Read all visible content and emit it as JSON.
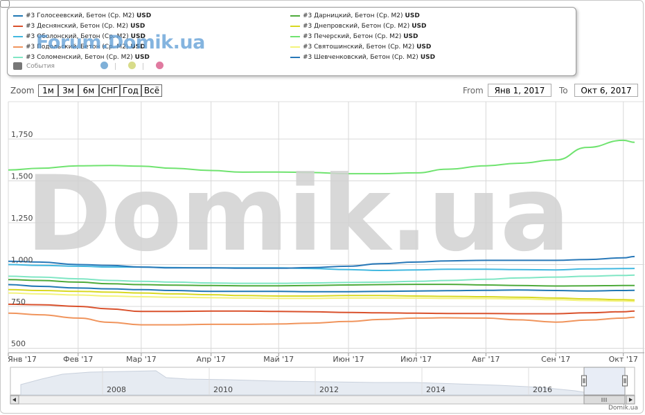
{
  "legend": {
    "items": [
      {
        "label": "#3 Голосеевский, Бетон (Ср. М2)",
        "unit": "USD",
        "color": "#1f77b4"
      },
      {
        "label": "#3 Деснянский, Бетон (Ср. М2)",
        "unit": "USD",
        "color": "#d9502b"
      },
      {
        "label": "#3 Оболонский, Бетон (Ср. М2)",
        "unit": "USD",
        "color": "#41b8e0"
      },
      {
        "label": "#3 Подольский, Бетон (Ср. М2)",
        "unit": "USD",
        "color": "#f0945c"
      },
      {
        "label": "#3 Соломенский, Бетон (Ср. М2)",
        "unit": "USD",
        "color": "#7fe6c4"
      },
      {
        "label": "#3 Дарницкий, Бетон (Ср. М2)",
        "unit": "USD",
        "color": "#4daa3a"
      },
      {
        "label": "#3 Днепровский, Бетон (Ср. М2)",
        "unit": "USD",
        "color": "#d8d820"
      },
      {
        "label": "#3 Печерский, Бетон (Ср. М2)",
        "unit": "USD",
        "color": "#6fe36f"
      },
      {
        "label": "#3 Святошинский, Бетон (Ср. М2)",
        "unit": "USD",
        "color": "#f3f37a"
      },
      {
        "label": "#3 Шевченковский, Бетон (Ср. М2)",
        "unit": "USD",
        "color": "#2878b8"
      }
    ],
    "events_label": "События",
    "event_dot_colors": [
      "#7fb0d8",
      "#d8dc8a",
      "#e07aa0"
    ]
  },
  "watermark_small": "Forum.Domik.ua",
  "watermark_big": "Domik.ua",
  "zoom": {
    "label": "Zoom",
    "buttons": [
      "1м",
      "3м",
      "6м",
      "СНГ",
      "Год",
      "Всё"
    ]
  },
  "range": {
    "from_label": "From",
    "from_value": "Янв 1, 2017",
    "to_label": "To",
    "to_value": "Окт 6, 2017"
  },
  "navigator": {
    "labels": [
      "2008",
      "2010",
      "2012",
      "2014",
      "2016"
    ]
  },
  "credit": "Domik.ua",
  "chart_data": {
    "type": "line",
    "x": [
      "2017-01-01",
      "2017-01-15",
      "2017-02-01",
      "2017-02-15",
      "2017-03-01",
      "2017-03-15",
      "2017-04-01",
      "2017-04-15",
      "2017-05-01",
      "2017-05-15",
      "2017-06-01",
      "2017-06-15",
      "2017-07-01",
      "2017-07-15",
      "2017-08-01",
      "2017-08-15",
      "2017-09-01",
      "2017-09-15",
      "2017-10-01",
      "2017-10-06"
    ],
    "x_tick_labels": [
      "Янв '17",
      "Фев '17",
      "Мар '17",
      "Апр '17",
      "Май '17",
      "Июн '17",
      "Июл '17",
      "Авг '17",
      "Сен '17",
      "Окт '17"
    ],
    "x_tick_dates": [
      "2017-01-01",
      "2017-02-01",
      "2017-03-01",
      "2017-04-01",
      "2017-05-01",
      "2017-06-01",
      "2017-07-01",
      "2017-08-01",
      "2017-09-01",
      "2017-10-01"
    ],
    "ylim": [
      500,
      1750
    ],
    "y_ticks": [
      500,
      750,
      1000,
      1250,
      1500,
      1750
    ],
    "y_tick_labels": [
      "500",
      "750",
      "1,000",
      "1,250",
      "1,500",
      "1,750"
    ],
    "series": [
      {
        "name": "#3 Голосеевский, Бетон (Ср. М2)",
        "color": "#1f77b4",
        "values": [
          880,
          870,
          860,
          855,
          850,
          845,
          840,
          840,
          840,
          838,
          838,
          840,
          842,
          844,
          846,
          848,
          845,
          842,
          845,
          846
        ]
      },
      {
        "name": "#3 Деснянский, Бетон (Ср. М2)",
        "color": "#d9502b",
        "values": [
          763,
          760,
          750,
          735,
          720,
          720,
          722,
          722,
          720,
          718,
          714,
          712,
          710,
          708,
          708,
          706,
          706,
          712,
          718,
          722
        ]
      },
      {
        "name": "#3 Оболонский, Бетон (Ср. М2)",
        "color": "#41b8e0",
        "values": [
          1000,
          995,
          990,
          985,
          985,
          982,
          980,
          980,
          980,
          977,
          970,
          965,
          968,
          972,
          972,
          970,
          968,
          974,
          976,
          977
        ]
      },
      {
        "name": "#3 Подольский, Бетон (Ср. М2)",
        "color": "#f0945c",
        "values": [
          710,
          700,
          680,
          655,
          640,
          640,
          643,
          643,
          645,
          650,
          660,
          672,
          680,
          682,
          680,
          670,
          656,
          668,
          680,
          685
        ]
      },
      {
        "name": "#3 Соломенский, Бетон (Ср. М2)",
        "color": "#7fe6c4",
        "values": [
          930,
          925,
          915,
          905,
          900,
          895,
          890,
          888,
          888,
          890,
          893,
          895,
          900,
          905,
          912,
          920,
          925,
          930,
          935,
          937
        ]
      },
      {
        "name": "#3 Дарницкий, Бетон (Ср. М2)",
        "color": "#4daa3a",
        "values": [
          910,
          905,
          895,
          885,
          880,
          877,
          875,
          873,
          873,
          875,
          878,
          880,
          882,
          882,
          878,
          875,
          872,
          873,
          875,
          875
        ]
      },
      {
        "name": "#3 Днепровский, Бетон (Ср. М2)",
        "color": "#d8d820",
        "values": [
          850,
          845,
          840,
          835,
          830,
          825,
          820,
          815,
          812,
          812,
          815,
          815,
          812,
          810,
          808,
          805,
          800,
          795,
          790,
          788
        ]
      },
      {
        "name": "#3 Печерский, Бетон (Ср. М2)",
        "color": "#6fe36f",
        "values": [
          1565,
          1575,
          1590,
          1592,
          1588,
          1575,
          1562,
          1552,
          1553,
          1550,
          1543,
          1543,
          1548,
          1570,
          1590,
          1605,
          1625,
          1700,
          1742,
          1730
        ]
      },
      {
        "name": "#3 Святошинский, Бетон (Ср. М2)",
        "color": "#f3f37a",
        "values": [
          830,
          825,
          818,
          812,
          808,
          805,
          802,
          800,
          798,
          798,
          800,
          800,
          800,
          798,
          797,
          795,
          790,
          785,
          782,
          780
        ]
      },
      {
        "name": "#3 Шевченковский, Бетон (Ср. М2)",
        "color": "#2878b8",
        "values": [
          1020,
          1015,
          1000,
          995,
          985,
          980,
          980,
          978,
          978,
          982,
          990,
          1005,
          1015,
          1022,
          1025,
          1025,
          1025,
          1030,
          1040,
          1048
        ]
      }
    ],
    "grid": true,
    "legend_position": "top-left"
  }
}
